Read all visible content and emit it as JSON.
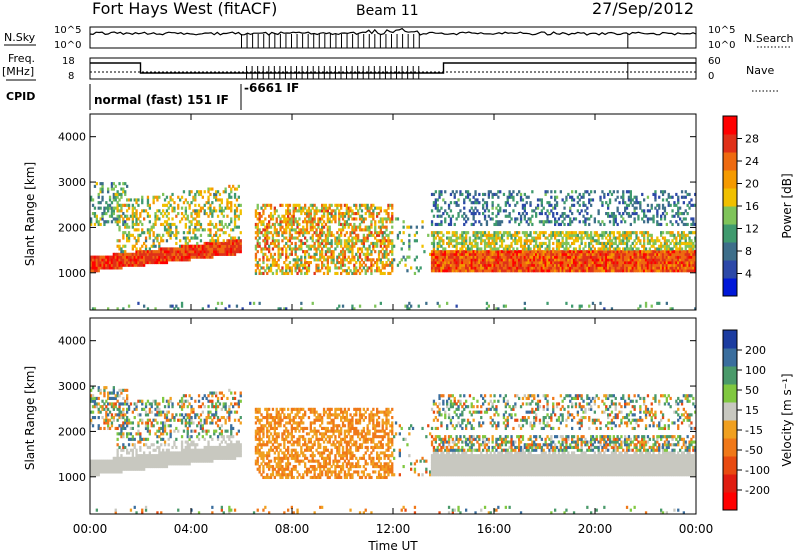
{
  "header": {
    "station": "Fort Hays West (fitACF)",
    "beam": "Beam 11",
    "date": "27/Sep/2012"
  },
  "noise_panel": {
    "left_label": "N.Sky",
    "right_label": "N.Search",
    "left_ticks": [
      "10^5",
      "10^0"
    ],
    "right_ticks": [
      "10^5",
      "10^0"
    ]
  },
  "freq_panel": {
    "left_label_1": "Freq.",
    "left_label_2": "[MHz]",
    "right_label": "Nave",
    "left_ticks": [
      "18",
      "8"
    ],
    "right_ticks": [
      "60",
      "0"
    ]
  },
  "cpid": {
    "label": "CPID",
    "modes": [
      "normal (fast) 151 IF",
      "-6661 IF"
    ]
  },
  "time_axis": {
    "label": "Time UT",
    "ticks": [
      "00:00",
      "04:00",
      "08:00",
      "12:00",
      "16:00",
      "20:00",
      "00:00"
    ]
  },
  "chart_data": [
    {
      "type": "heatmap",
      "title": "",
      "xlabel": "Time UT",
      "ylabel": "Slant Range [km]",
      "xlim_hours": [
        0,
        24
      ],
      "ylim_km": [
        180,
        4500
      ],
      "y_ticks": [
        1000,
        2000,
        3000,
        4000
      ],
      "colorbar": {
        "label": "Power [dB]",
        "ticks": [
          "4",
          "8",
          "12",
          "16",
          "20",
          "24",
          "28"
        ],
        "colors": [
          "#0018d8",
          "#2c48a8",
          "#3d6e8a",
          "#3f9a6e",
          "#7fc45a",
          "#f0c000",
          "#f59a00",
          "#ee6a10",
          "#e03018",
          "#ff0000"
        ]
      },
      "regions": [
        {
          "name": "night band",
          "t": [
            0.0,
            6.0
          ],
          "range_km": [
            1000,
            1300
          ],
          "dB": 28
        },
        {
          "name": "rising echoes",
          "t": [
            2.0,
            6.0
          ],
          "range_km": [
            1200,
            2600
          ],
          "dB": 20
        },
        {
          "name": "diffuse patch",
          "t": [
            6.5,
            12.0
          ],
          "range_km": [
            900,
            2500
          ],
          "dB": 16
        },
        {
          "name": "dayside band",
          "t": [
            14.0,
            24.0
          ],
          "range_km": [
            1000,
            1500
          ],
          "dB": 26
        },
        {
          "name": "upper scatter",
          "t": [
            13.5,
            24.0
          ],
          "range_km": [
            2000,
            2800
          ],
          "dB": 6
        }
      ]
    },
    {
      "type": "heatmap",
      "title": "",
      "xlabel": "Time UT",
      "ylabel": "Slant Range [km]",
      "xlim_hours": [
        0,
        24
      ],
      "ylim_km": [
        180,
        4500
      ],
      "y_ticks": [
        1000,
        2000,
        3000,
        4000
      ],
      "colorbar": {
        "label": "Velocity [m s⁻¹]",
        "ticks": [
          "200",
          "100",
          "50",
          "15",
          "-15",
          "-50",
          "-100",
          "-200"
        ],
        "colors": [
          "#1c3ca0",
          "#3a6e9e",
          "#4a9a6a",
          "#80c840",
          "#c8c8c0",
          "#f0a020",
          "#f07818",
          "#e84a10",
          "#e01c10",
          "#ff0000"
        ]
      },
      "regions": [
        {
          "name": "ground scatter",
          "t": [
            0.0,
            6.0
          ],
          "range_km": [
            900,
            2000
          ],
          "v": 0
        },
        {
          "name": "negative flow",
          "t": [
            6.5,
            12.0
          ],
          "range_km": [
            900,
            2500
          ],
          "v": -40
        },
        {
          "name": "ground scatter",
          "t": [
            14.0,
            24.0
          ],
          "range_km": [
            1000,
            1500
          ],
          "v": 0
        },
        {
          "name": "mixed scatter",
          "t": [
            13.5,
            24.0
          ],
          "range_km": [
            2000,
            2800
          ],
          "v": 60
        }
      ]
    }
  ]
}
